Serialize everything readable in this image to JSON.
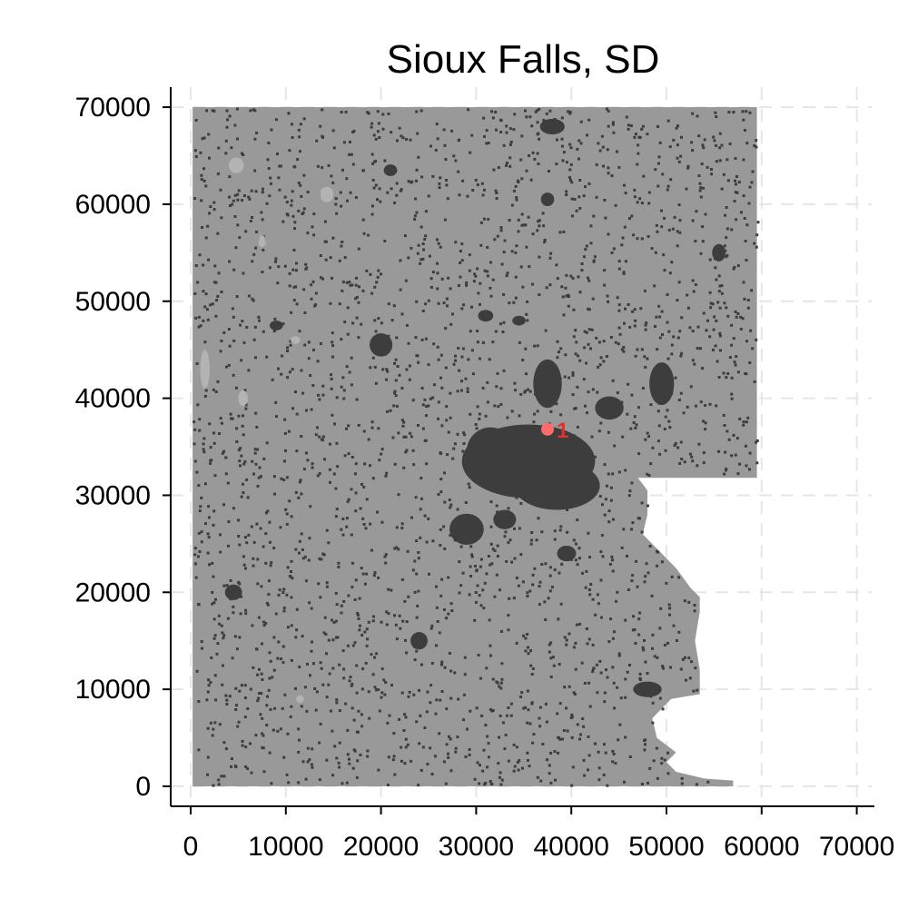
{
  "chart_data": {
    "type": "heatmap",
    "title": "Sioux Falls, SD",
    "xlabel": "",
    "ylabel": "",
    "xlim": [
      0,
      70000
    ],
    "ylim": [
      0,
      70000
    ],
    "x_ticks": [
      0,
      10000,
      20000,
      30000,
      40000,
      50000,
      60000,
      70000
    ],
    "y_ticks": [
      0,
      10000,
      20000,
      30000,
      40000,
      50000,
      60000,
      70000
    ],
    "x_tick_labels": [
      "0",
      "10000",
      "20000",
      "30000",
      "40000",
      "50000",
      "60000",
      "70000"
    ],
    "y_tick_labels": [
      "0",
      "10000",
      "20000",
      "30000",
      "40000",
      "50000",
      "60000",
      "70000"
    ],
    "grid": true,
    "legend": "none",
    "colors": {
      "background_land": "#999999",
      "developed": "#3d3d3d",
      "light_patches": "#b3b3b3",
      "marker": "#ff6b6b",
      "marker_label": "#e03030",
      "grid": "#e6e6e6"
    },
    "study_area_outline": [
      [
        200,
        0
      ],
      [
        57000,
        0
      ],
      [
        57000,
        600
      ],
      [
        54000,
        800
      ],
      [
        51000,
        1500
      ],
      [
        50000,
        2500
      ],
      [
        51000,
        3500
      ],
      [
        49000,
        5000
      ],
      [
        48500,
        7000
      ],
      [
        50500,
        9000
      ],
      [
        53500,
        9500
      ],
      [
        53500,
        12000
      ],
      [
        53000,
        15000
      ],
      [
        53500,
        18000
      ],
      [
        53500,
        19500
      ],
      [
        52500,
        20500
      ],
      [
        51000,
        22500
      ],
      [
        49500,
        24000
      ],
      [
        47500,
        26000
      ],
      [
        48000,
        28000
      ],
      [
        48000,
        30500
      ],
      [
        47000,
        31800
      ],
      [
        59500,
        31800
      ],
      [
        59500,
        70000
      ],
      [
        200,
        70000
      ]
    ],
    "developed_areas": [
      {
        "x": 35500,
        "y": 33500,
        "rx": 7000,
        "ry": 3800
      },
      {
        "x": 31500,
        "y": 34500,
        "rx": 2500,
        "ry": 2500
      },
      {
        "x": 38500,
        "y": 31000,
        "rx": 4500,
        "ry": 2500
      },
      {
        "x": 37500,
        "y": 41500,
        "rx": 1500,
        "ry": 2500
      },
      {
        "x": 49500,
        "y": 41500,
        "rx": 1300,
        "ry": 2200
      },
      {
        "x": 29000,
        "y": 26500,
        "rx": 1800,
        "ry": 1600
      },
      {
        "x": 33000,
        "y": 27500,
        "rx": 1200,
        "ry": 1000
      },
      {
        "x": 39500,
        "y": 24000,
        "rx": 1000,
        "ry": 800
      },
      {
        "x": 20000,
        "y": 45500,
        "rx": 1200,
        "ry": 1200
      },
      {
        "x": 24000,
        "y": 15000,
        "rx": 900,
        "ry": 900
      },
      {
        "x": 4500,
        "y": 20000,
        "rx": 900,
        "ry": 800
      },
      {
        "x": 38000,
        "y": 68000,
        "rx": 1300,
        "ry": 800
      },
      {
        "x": 21000,
        "y": 63500,
        "rx": 700,
        "ry": 600
      },
      {
        "x": 37500,
        "y": 60500,
        "rx": 700,
        "ry": 700
      },
      {
        "x": 48000,
        "y": 10000,
        "rx": 1500,
        "ry": 800
      },
      {
        "x": 55500,
        "y": 55000,
        "rx": 700,
        "ry": 900
      },
      {
        "x": 31000,
        "y": 48500,
        "rx": 800,
        "ry": 600
      },
      {
        "x": 34500,
        "y": 48000,
        "rx": 700,
        "ry": 500
      },
      {
        "x": 44000,
        "y": 39000,
        "rx": 1500,
        "ry": 1200
      },
      {
        "x": 9000,
        "y": 47500,
        "rx": 700,
        "ry": 500
      }
    ],
    "light_patches": [
      {
        "x": 4800,
        "y": 64000,
        "rx": 800,
        "ry": 800
      },
      {
        "x": 14300,
        "y": 61000,
        "rx": 700,
        "ry": 800
      },
      {
        "x": 1500,
        "y": 43000,
        "rx": 500,
        "ry": 2000
      },
      {
        "x": 5500,
        "y": 40000,
        "rx": 500,
        "ry": 800
      },
      {
        "x": 7500,
        "y": 56000,
        "rx": 400,
        "ry": 400
      },
      {
        "x": 11000,
        "y": 46000,
        "rx": 500,
        "ry": 400
      },
      {
        "x": 7500,
        "y": 56500,
        "rx": 300,
        "ry": 300
      },
      {
        "x": 11500,
        "y": 9000,
        "rx": 400,
        "ry": 400
      }
    ],
    "markers": [
      {
        "x": 37500,
        "y": 36800,
        "label": "1"
      }
    ]
  }
}
